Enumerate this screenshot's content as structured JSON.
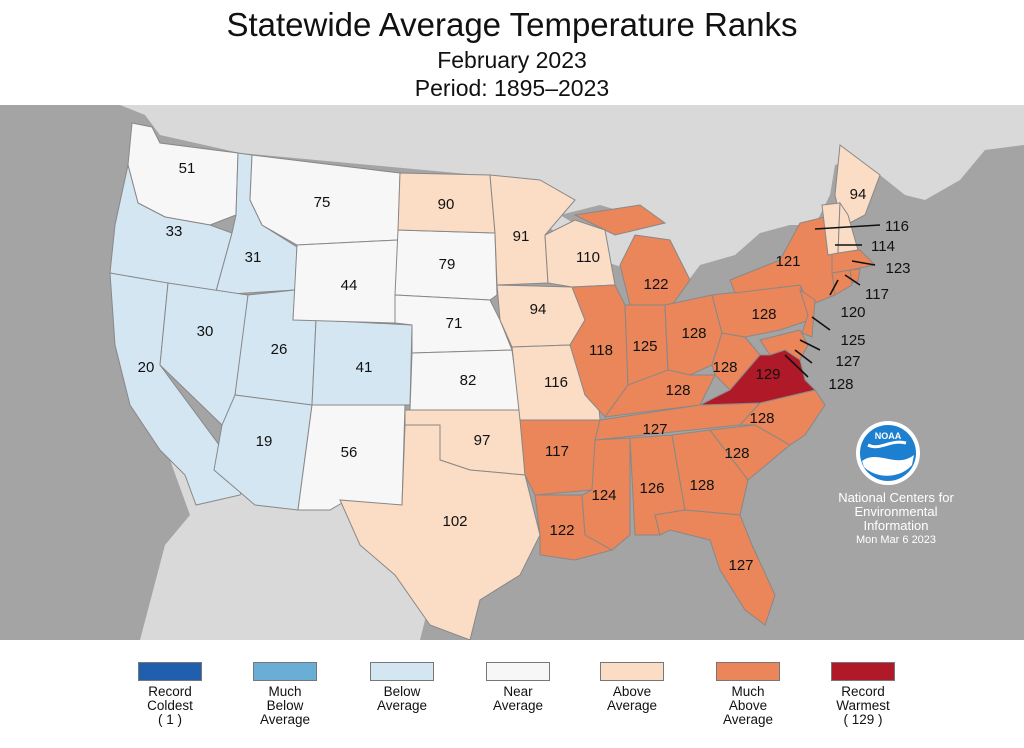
{
  "title": "Statewide Average Temperature Ranks",
  "subtitle": "February 2023",
  "period": "Period: 1895–2023",
  "credit": {
    "line1": "National Centers for",
    "line2": "Environmental",
    "line3": "Information",
    "date": "Mon Mar  6 2023",
    "logo_text": "NOAA"
  },
  "categories": {
    "record_coldest": "#1f5fae",
    "much_below": "#6aaed6",
    "below": "#d5e6f3",
    "near": "#f7f7f7",
    "above": "#fbdcc5",
    "much_above": "#ea8659",
    "record_warmest": "#b01a28"
  },
  "states": {
    "WA": "51",
    "OR": "33",
    "CA": "20",
    "ID": "31",
    "NV": "30",
    "MT": "75",
    "WY": "44",
    "UT": "26",
    "AZ": "19",
    "CO": "41",
    "NM": "56",
    "ND": "90",
    "SD": "79",
    "NE": "71",
    "KS": "82",
    "OK": "97",
    "TX": "102",
    "MN": "91",
    "IA": "94",
    "MO": "116",
    "AR": "117",
    "LA": "122",
    "WI": "110",
    "IL": "118",
    "MI": "122",
    "IN": "125",
    "OH": "128",
    "KY": "128",
    "TN": "127",
    "MS": "124",
    "AL": "126",
    "GA": "128",
    "FL": "127",
    "SC": "128",
    "NC": "128",
    "VA": "129",
    "WV": "128",
    "PA": "128",
    "NY": "121",
    "ME": "94",
    "VT": "116",
    "NH": "114",
    "MA": "123",
    "RI": "117",
    "CT": "120",
    "NJ": "125",
    "DE": "127",
    "MD": "128"
  },
  "legend": [
    {
      "label": "Record\nColdest\n( 1 )",
      "color": "#1f5fae"
    },
    {
      "label": "Much\nBelow\nAverage",
      "color": "#6aaed6"
    },
    {
      "label": "Below\nAverage",
      "color": "#d5e6f3"
    },
    {
      "label": "Near\nAverage",
      "color": "#f7f7f7"
    },
    {
      "label": "Above\nAverage",
      "color": "#fbdcc5"
    },
    {
      "label": "Much\nAbove\nAverage",
      "color": "#ea8659"
    },
    {
      "label": "Record\nWarmest\n( 129 )",
      "color": "#b01a28"
    }
  ]
}
